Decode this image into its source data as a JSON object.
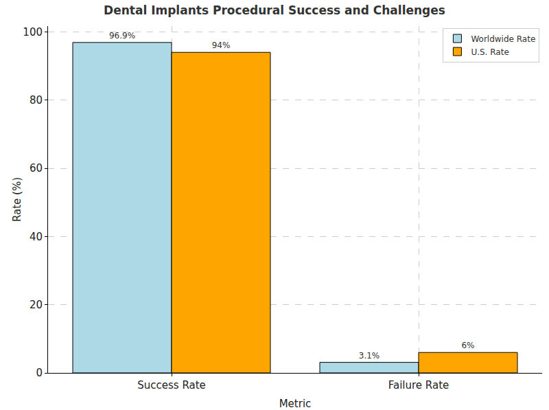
{
  "chart_data": {
    "type": "bar",
    "title": "Dental Implants Procedural Success and Challenges",
    "x_label": "Metric",
    "y_label": "Rate (%)",
    "categories": [
      "Success Rate",
      "Failure Rate"
    ],
    "series": [
      {
        "name": "Worldwide Rate",
        "color": "#add8e6",
        "values": [
          96.9,
          3.1
        ],
        "value_labels": [
          "96.9%",
          "3.1%"
        ]
      },
      {
        "name": "U.S. Rate",
        "color": "#ffa500",
        "values": [
          94,
          6
        ],
        "value_labels": [
          "94%",
          "6%"
        ]
      }
    ],
    "ylim": [
      0,
      101.7
    ],
    "yticks": [
      0,
      20,
      40,
      60,
      80,
      100
    ],
    "grid": true,
    "legend": "upper right",
    "data_labels": true
  }
}
